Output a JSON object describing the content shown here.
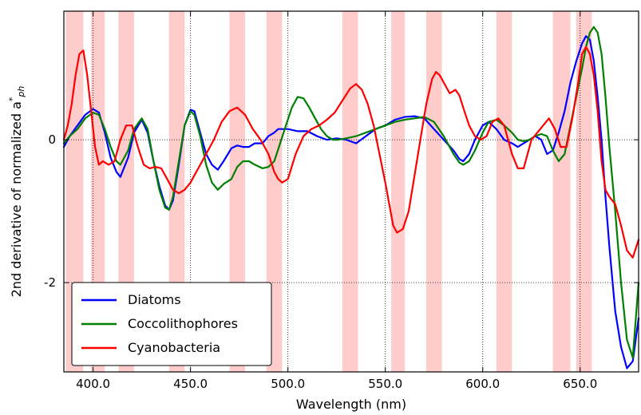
{
  "chart_data": {
    "type": "line",
    "xlabel": "Wavelength (nm)",
    "ylabel": "2nd derivative of normalized a*ph",
    "ylabel_main": "2nd derivative of normalized a",
    "ylabel_sup": "*",
    "ylabel_sub": "ph",
    "xlim": [
      385,
      680
    ],
    "ylim": [
      -3.25,
      1.8
    ],
    "xticks": [
      400,
      450,
      500,
      550,
      600,
      650
    ],
    "xtick_labels": [
      "400.0",
      "450.0",
      "500.0",
      "550.0",
      "600.0",
      "650.0"
    ],
    "yticks": [
      0,
      -2
    ],
    "ytick_labels": [
      "0",
      "-2"
    ],
    "grid": "dotted",
    "legend_position": "bottom-left",
    "shaded_bands": [
      [
        386,
        395
      ],
      [
        399,
        406
      ],
      [
        413,
        421
      ],
      [
        439,
        447
      ],
      [
        470,
        478
      ],
      [
        489,
        497
      ],
      [
        528,
        536
      ],
      [
        553,
        560
      ],
      [
        571,
        579
      ],
      [
        607,
        615
      ],
      [
        636,
        645
      ],
      [
        648,
        656
      ]
    ],
    "series": [
      {
        "name": "Diatoms",
        "color": "#0000ff",
        "x": [
          385,
          388,
          392,
          396,
          400,
          403,
          406,
          409,
          412,
          414,
          418,
          421,
          425,
          428,
          431,
          434,
          437,
          439,
          441,
          444,
          447,
          450,
          452,
          455,
          458,
          461,
          464,
          467,
          471,
          474,
          477,
          480,
          483,
          487,
          490,
          493,
          495,
          500,
          505,
          510,
          515,
          520,
          525,
          530,
          535,
          540,
          545,
          550,
          555,
          560,
          565,
          570,
          575,
          580,
          585,
          588,
          590,
          593,
          596,
          600,
          603,
          607,
          611,
          615,
          618,
          621,
          624,
          627,
          630,
          633,
          636,
          639,
          642,
          645,
          648,
          651,
          653,
          655,
          657,
          659,
          661,
          663,
          665,
          668,
          671,
          674,
          677,
          680
        ],
        "y": [
          -0.1,
          0.05,
          0.2,
          0.35,
          0.43,
          0.38,
          0.1,
          -0.25,
          -0.45,
          -0.52,
          -0.25,
          0.1,
          0.28,
          0.1,
          -0.3,
          -0.65,
          -0.92,
          -0.98,
          -0.85,
          -0.35,
          0.2,
          0.42,
          0.4,
          0.1,
          -0.2,
          -0.35,
          -0.42,
          -0.3,
          -0.12,
          -0.08,
          -0.1,
          -0.1,
          -0.05,
          -0.05,
          0.05,
          0.1,
          0.15,
          0.15,
          0.12,
          0.12,
          0.05,
          0.0,
          0.02,
          0.0,
          -0.05,
          0.05,
          0.15,
          0.2,
          0.28,
          0.32,
          0.33,
          0.3,
          0.15,
          0.0,
          -0.15,
          -0.27,
          -0.3,
          -0.2,
          0.0,
          0.2,
          0.25,
          0.15,
          0.0,
          -0.05,
          -0.1,
          -0.05,
          0.0,
          0.05,
          0.0,
          -0.2,
          -0.15,
          0.1,
          0.4,
          0.8,
          1.1,
          1.35,
          1.45,
          1.4,
          1.1,
          0.6,
          0.0,
          -0.8,
          -1.5,
          -2.4,
          -2.9,
          -3.2,
          -3.1,
          -2.5
        ]
      },
      {
        "name": "Coccolithophores",
        "color": "#008000",
        "x": [
          385,
          388,
          392,
          396,
          400,
          403,
          406,
          409,
          412,
          414,
          418,
          421,
          425,
          428,
          431,
          434,
          437,
          439,
          441,
          444,
          447,
          450,
          452,
          455,
          458,
          461,
          464,
          467,
          471,
          474,
          477,
          480,
          483,
          487,
          490,
          493,
          496,
          499,
          502,
          505,
          508,
          511,
          514,
          517,
          520,
          523,
          526,
          530,
          535,
          540,
          545,
          550,
          555,
          560,
          565,
          570,
          575,
          580,
          585,
          588,
          590,
          593,
          596,
          600,
          603,
          607,
          611,
          615,
          618,
          621,
          624,
          627,
          630,
          633,
          636,
          639,
          642,
          645,
          648,
          651,
          653,
          655,
          657,
          659,
          661,
          663,
          665,
          668,
          671,
          674,
          677,
          680
        ],
        "y": [
          -0.05,
          0.05,
          0.15,
          0.3,
          0.38,
          0.35,
          0.15,
          -0.1,
          -0.3,
          -0.35,
          -0.15,
          0.15,
          0.3,
          0.15,
          -0.3,
          -0.7,
          -0.95,
          -0.98,
          -0.8,
          -0.3,
          0.2,
          0.4,
          0.35,
          0.05,
          -0.35,
          -0.6,
          -0.7,
          -0.62,
          -0.55,
          -0.38,
          -0.3,
          -0.3,
          -0.35,
          -0.4,
          -0.38,
          -0.3,
          -0.05,
          0.2,
          0.45,
          0.6,
          0.58,
          0.45,
          0.3,
          0.15,
          0.05,
          0.0,
          0.0,
          0.02,
          0.05,
          0.1,
          0.15,
          0.2,
          0.25,
          0.28,
          0.3,
          0.32,
          0.25,
          0.05,
          -0.2,
          -0.32,
          -0.35,
          -0.3,
          -0.15,
          0.1,
          0.25,
          0.28,
          0.2,
          0.1,
          0.0,
          -0.02,
          0.0,
          0.05,
          0.08,
          0.05,
          -0.15,
          -0.3,
          -0.2,
          0.2,
          0.6,
          1.0,
          1.3,
          1.5,
          1.58,
          1.5,
          1.2,
          0.6,
          -0.1,
          -1.0,
          -2.0,
          -2.8,
          -3.05,
          -2.0
        ]
      },
      {
        "name": "Cyanobacteria",
        "color": "#ff0000",
        "x": [
          385,
          387,
          389,
          391,
          393,
          395,
          397,
          399,
          401,
          403,
          405,
          408,
          411,
          414,
          417,
          420,
          423,
          426,
          429,
          432,
          435,
          438,
          441,
          444,
          447,
          450,
          454,
          458,
          462,
          466,
          470,
          474,
          478,
          482,
          486,
          490,
          493,
          495,
          497,
          500,
          504,
          508,
          512,
          516,
          520,
          524,
          528,
          532,
          535,
          538,
          541,
          544,
          547,
          550,
          552,
          554,
          556,
          559,
          562,
          565,
          568,
          571,
          574,
          576,
          578,
          580,
          583,
          586,
          588,
          590,
          593,
          596,
          599,
          602,
          605,
          608,
          611,
          613,
          615,
          618,
          621,
          623,
          625,
          628,
          631,
          634,
          637,
          640,
          643,
          646,
          649,
          651,
          653,
          655,
          657,
          659,
          661,
          663,
          665,
          668,
          671,
          674,
          677,
          680
        ],
        "y": [
          0.0,
          0.2,
          0.5,
          0.9,
          1.2,
          1.25,
          0.9,
          0.4,
          -0.1,
          -0.35,
          -0.3,
          -0.35,
          -0.3,
          0.0,
          0.2,
          0.2,
          -0.1,
          -0.35,
          -0.4,
          -0.38,
          -0.4,
          -0.55,
          -0.7,
          -0.75,
          -0.7,
          -0.6,
          -0.4,
          -0.2,
          0.0,
          0.25,
          0.4,
          0.45,
          0.35,
          0.15,
          0.0,
          -0.2,
          -0.45,
          -0.55,
          -0.6,
          -0.55,
          -0.2,
          0.05,
          0.15,
          0.2,
          0.28,
          0.38,
          0.55,
          0.72,
          0.78,
          0.7,
          0.5,
          0.2,
          -0.2,
          -0.6,
          -0.9,
          -1.2,
          -1.3,
          -1.25,
          -1.0,
          -0.5,
          0.0,
          0.5,
          0.85,
          0.95,
          0.9,
          0.8,
          0.65,
          0.7,
          0.62,
          0.45,
          0.2,
          0.05,
          0.0,
          0.05,
          0.25,
          0.3,
          0.2,
          0.0,
          -0.2,
          -0.4,
          -0.4,
          -0.2,
          0.0,
          0.1,
          0.2,
          0.3,
          0.15,
          -0.1,
          -0.1,
          0.3,
          0.8,
          1.2,
          1.3,
          1.2,
          0.9,
          0.4,
          -0.3,
          -0.7,
          -0.8,
          -0.9,
          -1.2,
          -1.55,
          -1.65,
          -1.4
        ]
      }
    ]
  }
}
